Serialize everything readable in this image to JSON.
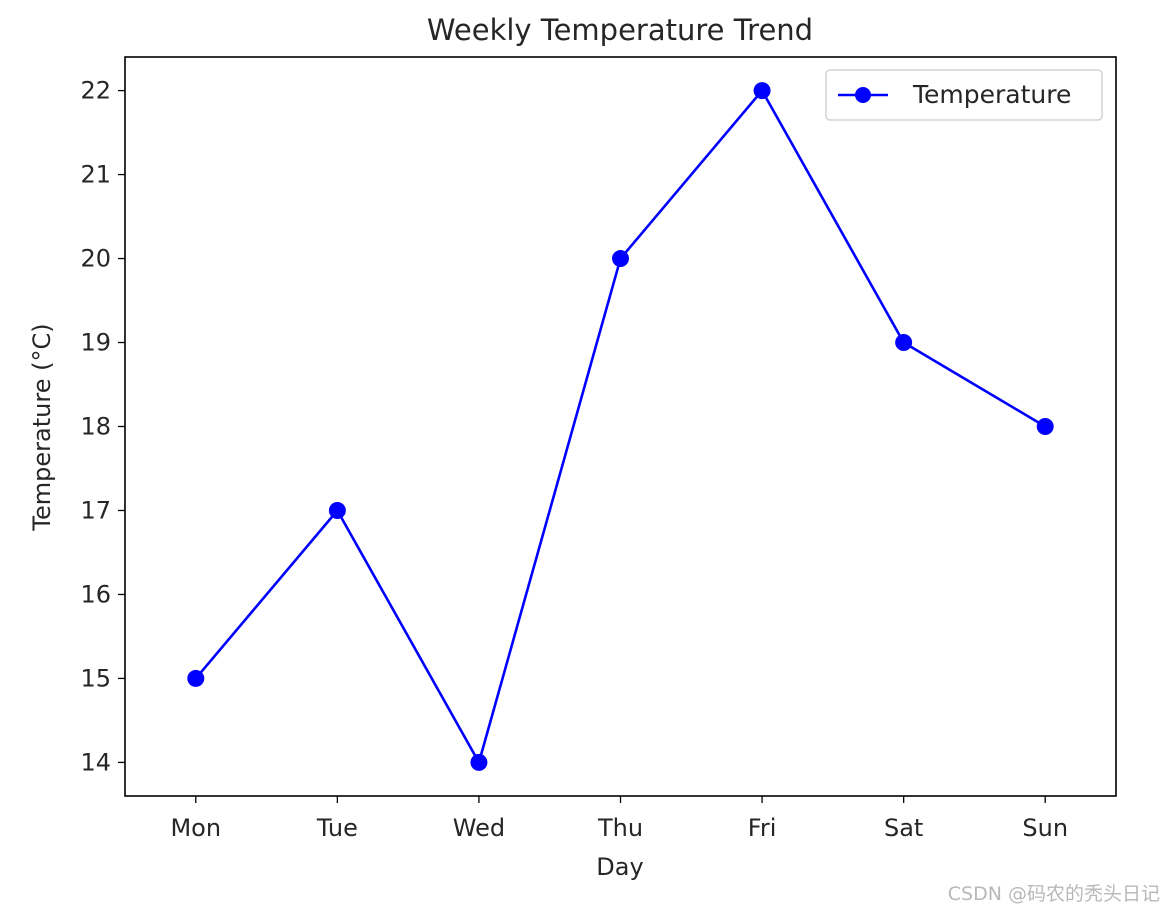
{
  "chart_data": {
    "type": "line",
    "title": "Weekly Temperature Trend",
    "xlabel": "Day",
    "ylabel": "Temperature (°C)",
    "categories": [
      "Mon",
      "Tue",
      "Wed",
      "Thu",
      "Fri",
      "Sat",
      "Sun"
    ],
    "series": [
      {
        "name": "Temperature",
        "values": [
          15,
          17,
          14,
          20,
          22,
          19,
          18
        ],
        "color": "#0000ff",
        "marker": "circle"
      }
    ],
    "ylim": [
      13.6,
      22.4
    ],
    "yticks": [
      14,
      15,
      16,
      17,
      18,
      19,
      20,
      21,
      22
    ],
    "grid": false,
    "legend": "top-right"
  },
  "watermark": "CSDN @码农的秃头日记"
}
